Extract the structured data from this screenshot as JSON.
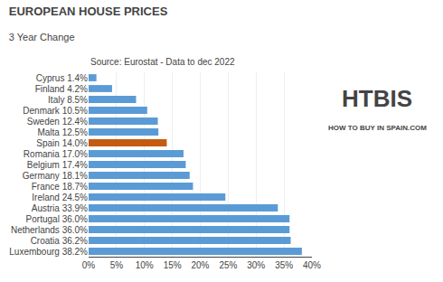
{
  "chart_data": {
    "type": "bar",
    "orientation": "horizontal",
    "title": "EUROPEAN HOUSE PRICES",
    "subtitle": "3 Year Change",
    "annotations": [
      "Source: Eurostat - Data to dec 2022",
      "HTBIS",
      "HOW TO BUY IN SPAIN.COM"
    ],
    "categories": [
      "Cyprus 1.4%",
      "Finland 4.2%",
      "Italy 8.5%",
      "Denmark 10.5%",
      "Sweden 12.4%",
      "Malta 12.5%",
      "Spain 14.0%",
      "Romania 17.0%",
      "Belgium 17.4%",
      "Germany 18.1%",
      "France 18.7%",
      "Ireland 24.5%",
      "Austria 33.9%",
      "Portugal 36.0%",
      "Netherlands 36.0%",
      "Croatia 36.2%",
      "Luxembourg 38.2%"
    ],
    "values": [
      1.4,
      4.2,
      8.5,
      10.5,
      12.4,
      12.5,
      14.0,
      17.0,
      17.4,
      18.1,
      18.7,
      24.5,
      33.9,
      36.0,
      36.0,
      36.2,
      38.2
    ],
    "colors": [
      "#5b9bd5",
      "#5b9bd5",
      "#5b9bd5",
      "#5b9bd5",
      "#5b9bd5",
      "#5b9bd5",
      "#c55a11",
      "#5b9bd5",
      "#5b9bd5",
      "#5b9bd5",
      "#5b9bd5",
      "#5b9bd5",
      "#5b9bd5",
      "#5b9bd5",
      "#5b9bd5",
      "#5b9bd5",
      "#5b9bd5"
    ],
    "xlim": [
      0,
      40
    ],
    "xticks": [
      {
        "value": 0,
        "label": "0%"
      },
      {
        "value": 5,
        "label": "5%"
      },
      {
        "value": 10,
        "label": "10%"
      },
      {
        "value": 15,
        "label": "15%"
      },
      {
        "value": 20,
        "label": "20%"
      },
      {
        "value": 25,
        "label": "25%"
      },
      {
        "value": 30,
        "label": "30%"
      },
      {
        "value": 35,
        "label": "35%"
      },
      {
        "value": 40,
        "label": "40%"
      }
    ],
    "grid": true
  }
}
